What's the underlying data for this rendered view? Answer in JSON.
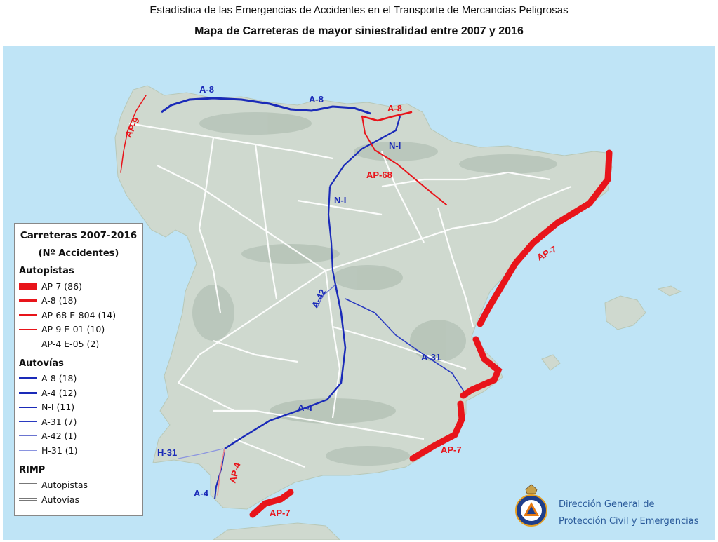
{
  "header": {
    "title": "Estadística de las Emergencias de Accidentes en el Transporte de Mercancías Peligrosas",
    "subtitle": "Mapa de Carreteras de mayor siniestralidad entre 2007 y 2016"
  },
  "colors": {
    "sea": "#bfe4f6",
    "land": "#cfd9cf",
    "relief": "#b4c2b6",
    "roads_rimp": "#ffffff",
    "autopista_red": "#e8141a",
    "autovia_blue": "#1a2ab8",
    "org_text": "#2a5a9a"
  },
  "map_labels": [
    {
      "text": "A-8",
      "class": "blue",
      "name": "label-a8-west"
    },
    {
      "text": "A-8",
      "class": "blue",
      "name": "label-a8-east"
    },
    {
      "text": "A-8",
      "class": "red",
      "name": "label-a8-autopista"
    },
    {
      "text": "AP-9",
      "class": "red",
      "name": "label-ap9"
    },
    {
      "text": "N-I",
      "class": "blue",
      "name": "label-ni-north"
    },
    {
      "text": "AP-68",
      "class": "red",
      "name": "label-ap68"
    },
    {
      "text": "N-I",
      "class": "blue",
      "name": "label-ni-south"
    },
    {
      "text": "AP-7",
      "class": "red",
      "name": "label-ap7-catalonia"
    },
    {
      "text": "A-42",
      "class": "blue",
      "name": "label-a42"
    },
    {
      "text": "A-31",
      "class": "blue",
      "name": "label-a31"
    },
    {
      "text": "A-4",
      "class": "blue",
      "name": "label-a4-central"
    },
    {
      "text": "H-31",
      "class": "blue",
      "name": "label-h31"
    },
    {
      "text": "AP-7",
      "class": "red",
      "name": "label-ap7-murcia"
    },
    {
      "text": "AP-4",
      "class": "red",
      "name": "label-ap4"
    },
    {
      "text": "A-4",
      "class": "blue",
      "name": "label-a4-cadiz"
    },
    {
      "text": "AP-7",
      "class": "red",
      "name": "label-ap7-malaga"
    }
  ],
  "legend": {
    "title": "Carreteras 2007-2016",
    "subtitle": "(Nº Accidentes)",
    "sections": [
      {
        "heading": "Autopistas",
        "items": [
          {
            "label": "AP-7 (86)",
            "color": "#e8141a",
            "weight": 9
          },
          {
            "label": "A-8 (18)",
            "color": "#e8141a",
            "weight": 3
          },
          {
            "label": "AP-68 E-804 (14)",
            "color": "#e8141a",
            "weight": 2
          },
          {
            "label": "AP-9 E-01 (10)",
            "color": "#e8141a",
            "weight": 1.5
          },
          {
            "label": "AP-4 E-05 (2)",
            "color": "#f08a8c",
            "weight": 1
          }
        ]
      },
      {
        "heading": "Autovías",
        "items": [
          {
            "label": "A-8 (18)",
            "color": "#1a2ab8",
            "weight": 3
          },
          {
            "label": "A-4 (12)",
            "color": "#1a2ab8",
            "weight": 2.5
          },
          {
            "label": "N-I (11)",
            "color": "#1a2ab8",
            "weight": 2
          },
          {
            "label": "A-31 (7)",
            "color": "#2a3ac0",
            "weight": 1.5
          },
          {
            "label": "A-42 (1)",
            "color": "#6a74d0",
            "weight": 1
          },
          {
            "label": "H-31 (1)",
            "color": "#8a94e0",
            "weight": 1
          }
        ]
      },
      {
        "heading": "RIMP",
        "items": [
          {
            "label": "Autopistas"
          },
          {
            "label": "Autovías"
          }
        ]
      }
    ]
  },
  "organization": {
    "line1": "Dirección General de",
    "line2": "Protección Civil y Emergencias",
    "logo_text": "PROTECCION CIVIL",
    "logo_bottom": "ESPAÑA"
  }
}
